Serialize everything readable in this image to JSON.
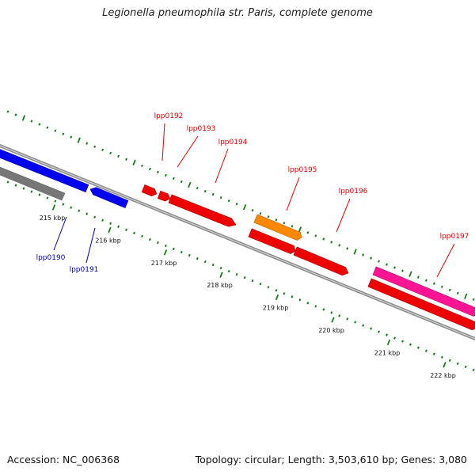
{
  "title": "Legionella pneumophila str. Paris, complete genome",
  "footer": {
    "accession": "Accession: NC_006368",
    "topology": "Topology: circular; Length: 3,503,610 bp; Genes: 3,080"
  },
  "colors": {
    "backbone": "#8c8c8c",
    "tick": "#1a7a1a",
    "forward_label": "#e00000",
    "reverse_label": "#0000b0"
  },
  "ticks": [
    {
      "label": "215 kbp"
    },
    {
      "label": "216 kbp"
    },
    {
      "label": "217 kbp"
    },
    {
      "label": "218 kbp"
    },
    {
      "label": "219 kbp"
    },
    {
      "label": "220 kbp"
    },
    {
      "label": "221 kbp"
    },
    {
      "label": "222 kbp"
    }
  ],
  "genes": [
    {
      "label": "lpp0190",
      "strand": "reverse",
      "color": "#0000ee"
    },
    {
      "label": "lpp0191",
      "strand": "reverse",
      "color": "#0000ee"
    },
    {
      "label": "lpp0192",
      "strand": "forward",
      "color": "#ee0000"
    },
    {
      "label": "lpp0193",
      "strand": "forward",
      "color": "#ee0000"
    },
    {
      "label": "lpp0194",
      "strand": "forward",
      "color": "#ee0000"
    },
    {
      "label": "lpp0195",
      "strand": "forward",
      "color": "#ff8800"
    },
    {
      "label": "lpp0196",
      "strand": "forward",
      "color": "#ee0000"
    },
    {
      "label": "lpp0197",
      "strand": "forward",
      "color": "#ff1493"
    }
  ]
}
